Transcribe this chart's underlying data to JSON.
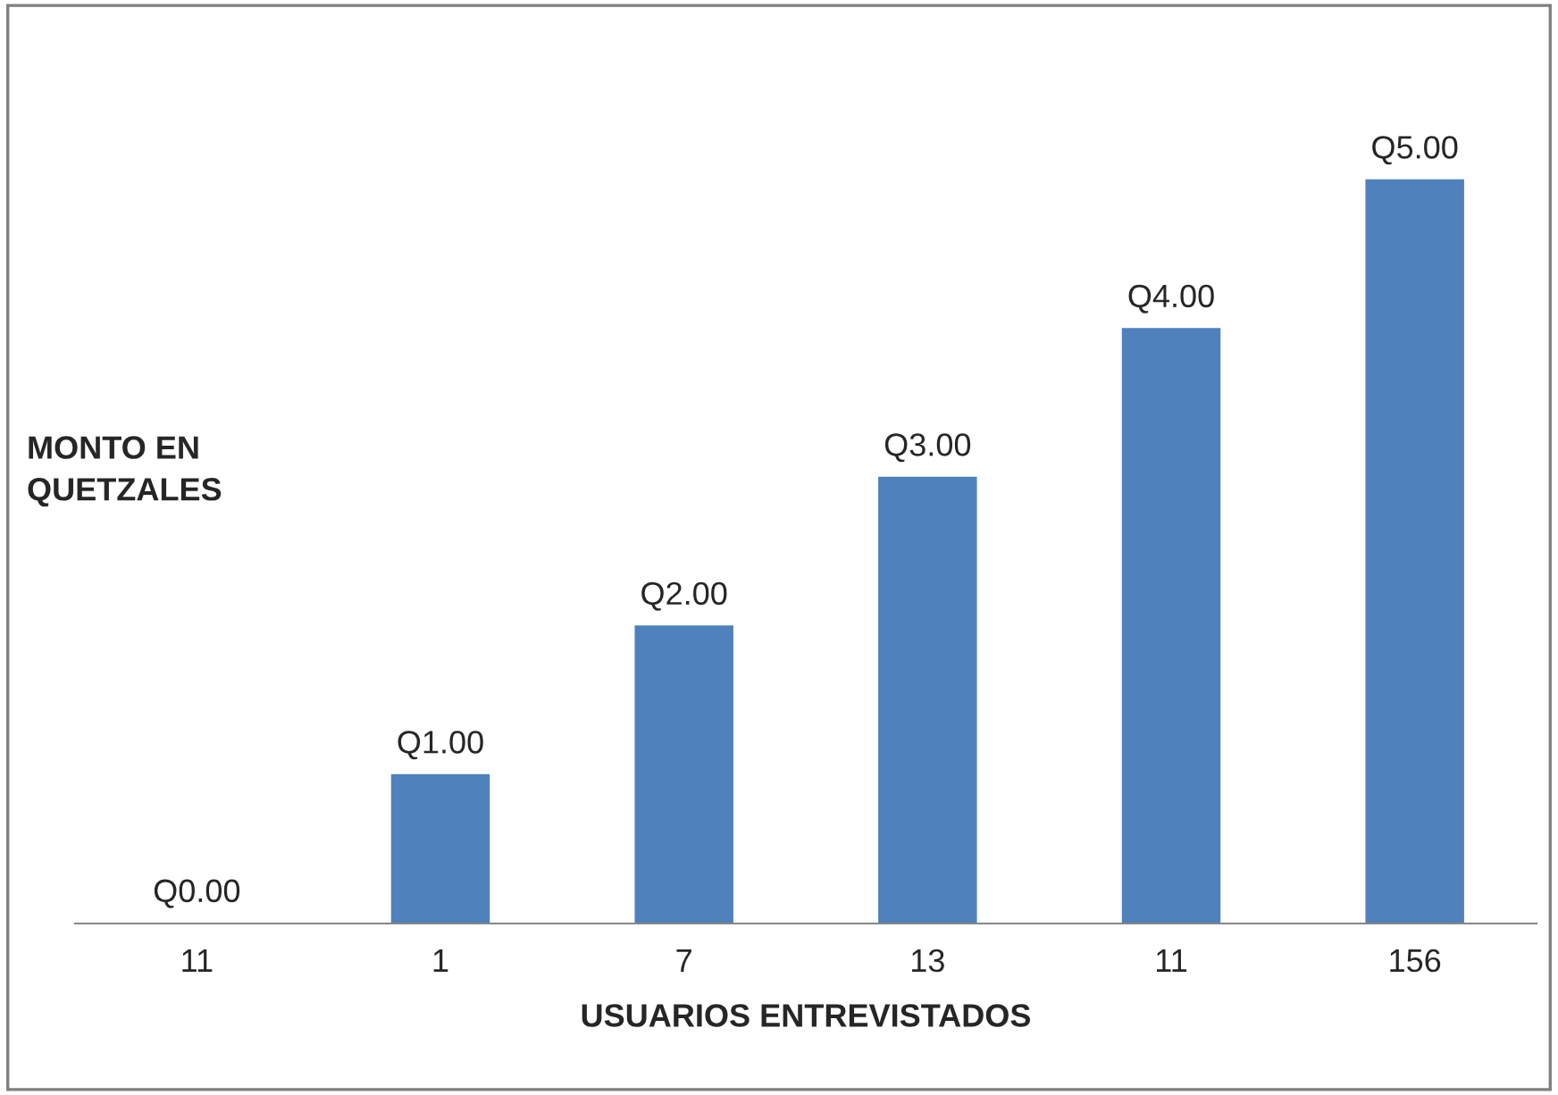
{
  "chart_data": {
    "type": "bar",
    "xlabel": "USUARIOS ENTREVISTADOS",
    "ylabel": "MONTO EN\nQUETZALES",
    "categories": [
      "11",
      "1",
      "7",
      "13",
      "11",
      "156"
    ],
    "values": [
      0,
      1,
      2,
      3,
      4,
      5
    ],
    "value_labels": [
      "Q0.00",
      "Q1.00",
      "Q2.00",
      "Q3.00",
      "Q4.00",
      "Q5.00"
    ],
    "color": "#4f81bd",
    "grid": false
  }
}
